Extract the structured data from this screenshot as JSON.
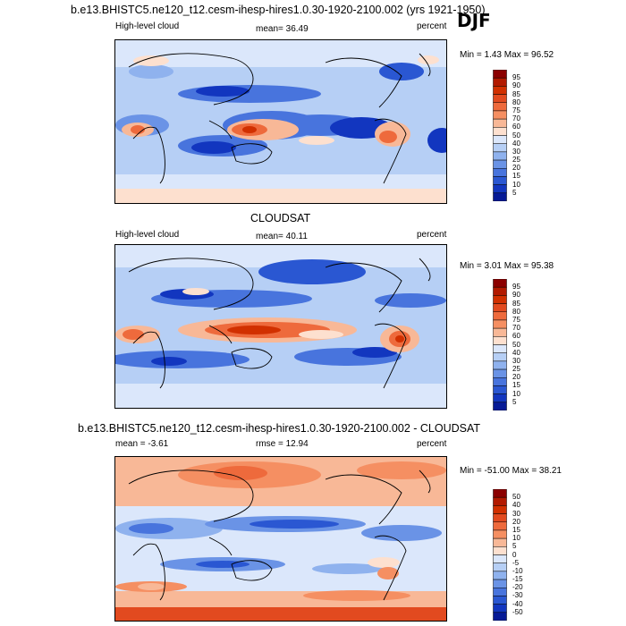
{
  "season": "DJF",
  "panels": [
    {
      "id": "model",
      "header": "b.e13.BHISTC5.ne120_t12.cesm-ihesp-hires1.0.30-1920-2100.002 (yrs 1921-1950)",
      "left_label": "High-level cloud",
      "stat_text": "mean=  36.49",
      "units": "percent",
      "minmax": "Min =   1.43 Max =  96.52",
      "colorbar_levels": [
        "95",
        "90",
        "85",
        "80",
        "75",
        "70",
        "60",
        "50",
        "40",
        "30",
        "25",
        "20",
        "15",
        "10",
        "5"
      ],
      "colors": [
        "#8b0000",
        "#b21a00",
        "#d13000",
        "#e24a1f",
        "#ee6a3c",
        "#f58f62",
        "#f8b897",
        "#fde0cf",
        "#dbe7fb",
        "#b6cff5",
        "#8fb2ee",
        "#6a93e6",
        "#4874dd",
        "#2a57d2",
        "#1236bf",
        "#061a96"
      ]
    },
    {
      "id": "obs",
      "header": "CLOUDSAT",
      "left_label": "High-level cloud",
      "stat_text": "mean=  40.11",
      "units": "percent",
      "minmax": "Min =   3.01 Max =  95.38",
      "colorbar_levels": [
        "95",
        "90",
        "85",
        "80",
        "75",
        "70",
        "60",
        "50",
        "40",
        "30",
        "25",
        "20",
        "15",
        "10",
        "5"
      ],
      "colors": [
        "#8b0000",
        "#b21a00",
        "#d13000",
        "#e24a1f",
        "#ee6a3c",
        "#f58f62",
        "#f8b897",
        "#fde0cf",
        "#dbe7fb",
        "#b6cff5",
        "#8fb2ee",
        "#6a93e6",
        "#4874dd",
        "#2a57d2",
        "#1236bf",
        "#061a96"
      ]
    },
    {
      "id": "diff",
      "header": "b.e13.BHISTC5.ne120_t12.cesm-ihesp-hires1.0.30-1920-2100.002 - CLOUDSAT",
      "left_label": "mean =  -3.61",
      "stat_text": "rmse =  12.94",
      "units": "percent",
      "minmax": "Min = -51.00 Max =  38.21",
      "colorbar_levels": [
        "50",
        "40",
        "30",
        "20",
        "15",
        "10",
        "5",
        "0",
        "-5",
        "-10",
        "-15",
        "-20",
        "-30",
        "-40",
        "-50"
      ],
      "colors": [
        "#8b0000",
        "#b21a00",
        "#d13000",
        "#e24a1f",
        "#ee6a3c",
        "#f58f62",
        "#f8b897",
        "#fde0cf",
        "#dbe7fb",
        "#b6cff5",
        "#8fb2ee",
        "#6a93e6",
        "#4874dd",
        "#2a57d2",
        "#1236bf",
        "#061a96"
      ]
    }
  ],
  "chart_data": [
    {
      "type": "heatmap",
      "title": "b.e13.BHISTC5.ne120_t12.cesm-ihesp-hires1.0.30-1920-2100.002 (yrs 1921-1950)",
      "variable": "High-level cloud",
      "units": "percent",
      "mean": 36.49,
      "min": 1.43,
      "max": 96.52,
      "contour_levels": [
        5,
        10,
        15,
        20,
        25,
        30,
        40,
        50,
        60,
        70,
        75,
        80,
        85,
        90,
        95
      ]
    },
    {
      "type": "heatmap",
      "title": "CLOUDSAT",
      "variable": "High-level cloud",
      "units": "percent",
      "mean": 40.11,
      "min": 3.01,
      "max": 95.38,
      "contour_levels": [
        5,
        10,
        15,
        20,
        25,
        30,
        40,
        50,
        60,
        70,
        75,
        80,
        85,
        90,
        95
      ]
    },
    {
      "type": "heatmap",
      "title": "b.e13.BHISTC5.ne120_t12.cesm-ihesp-hires1.0.30-1920-2100.002 - CLOUDSAT",
      "units": "percent",
      "mean": -3.61,
      "rmse": 12.94,
      "min": -51.0,
      "max": 38.21,
      "contour_levels": [
        -50,
        -40,
        -30,
        -20,
        -15,
        -10,
        -5,
        0,
        5,
        10,
        15,
        20,
        30,
        40,
        50
      ]
    }
  ]
}
